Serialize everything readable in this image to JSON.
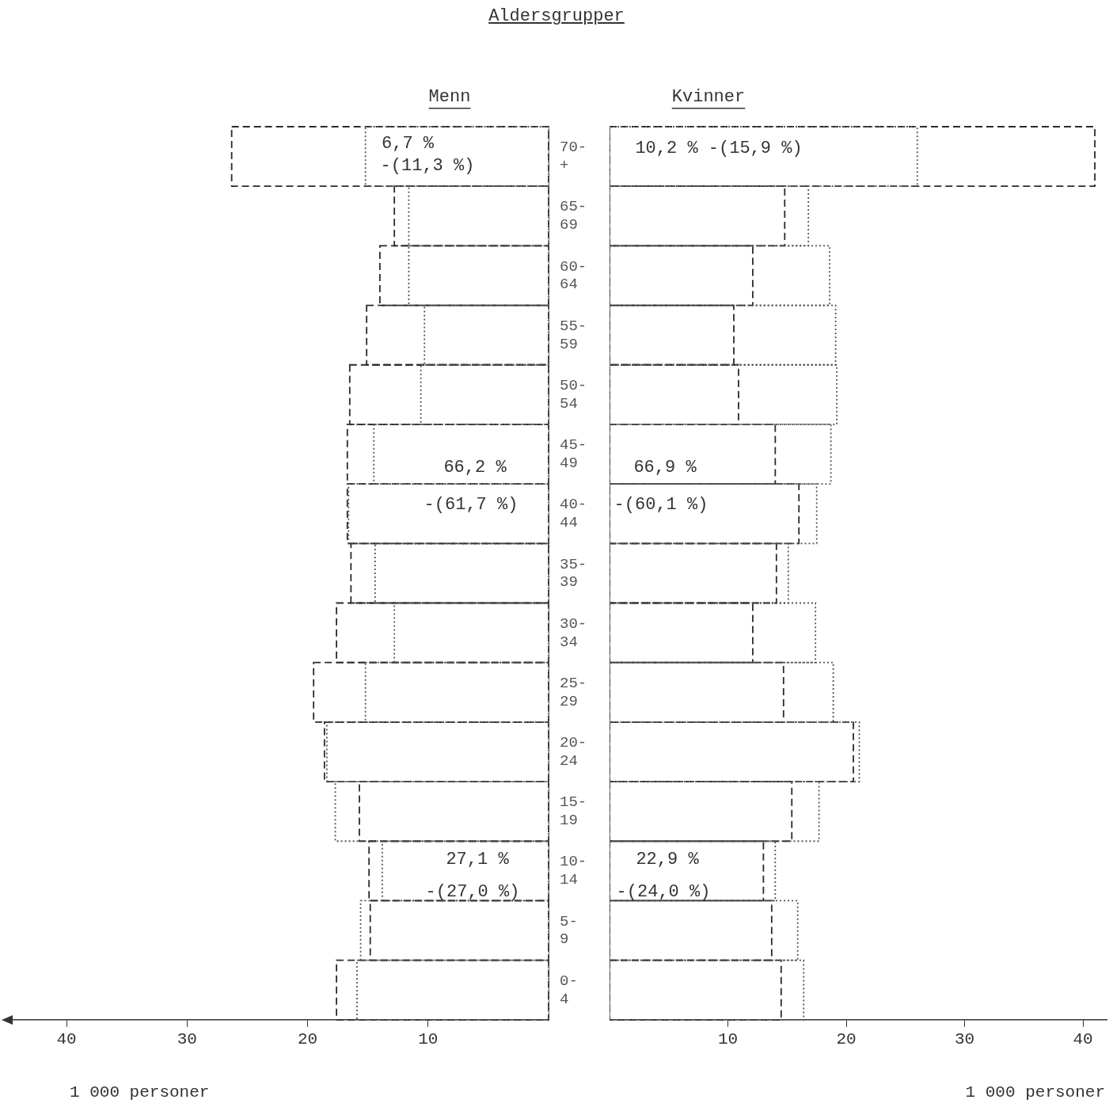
{
  "chart_data": [
    {
      "type": "bar",
      "title": "Aldersgrupper",
      "subtitle": "Menn",
      "xlabel": "1 000 personer",
      "orientation": "horizontal",
      "categories": [
        "70-+",
        "65-69",
        "60-64",
        "55-59",
        "50-54",
        "45-49",
        "40-44",
        "35-39",
        "30-34",
        "25-29",
        "20-24",
        "15-19",
        "10-14",
        "5-9",
        "0-4"
      ],
      "series": [
        {
          "color": "#2b2b2b",
          "line_style": "dashed",
          "values": [
            26.3,
            12.8,
            14.0,
            15.1,
            16.5,
            16.7,
            16.7,
            16.4,
            17.6,
            19.5,
            18.6,
            15.7,
            14.9,
            14.8,
            17.6
          ]
        },
        {
          "color": "#555555",
          "line_style": "dotted",
          "values": [
            15.2,
            11.6,
            11.6,
            10.3,
            10.6,
            14.5,
            16.6,
            14.4,
            12.8,
            15.2,
            18.4,
            17.7,
            13.8,
            15.6,
            15.9
          ]
        }
      ],
      "xlim": [
        45,
        0
      ],
      "xticks": [
        40,
        30,
        20,
        10
      ],
      "annotations": [
        "6,7 %",
        "-(11,3 %)",
        "66,2 %",
        "-(61,7 %)",
        "27,1 %",
        "-(27,0 %)"
      ]
    },
    {
      "type": "bar",
      "subtitle": "Kvinner",
      "xlabel": "1 000 personer",
      "orientation": "horizontal",
      "tick_labels": "x",
      "categories": [
        null,
        null,
        null,
        null,
        null,
        null,
        null,
        null,
        null,
        null,
        null,
        null,
        null,
        null,
        null
      ],
      "series": [
        {
          "color": "#2b2b2b",
          "line_style": "dashed",
          "values": [
            41,
            14.8,
            12.1,
            10.5,
            10.9,
            14.0,
            16.0,
            14.1,
            12.1,
            14.7,
            20.6,
            15.4,
            13.0,
            13.7,
            14.5
          ]
        },
        {
          "color": "#555555",
          "line_style": "dotted",
          "values": [
            26.0,
            16.8,
            18.6,
            19.1,
            19.2,
            18.7,
            17.5,
            15.1,
            17.4,
            18.9,
            21.1,
            17.7,
            14.0,
            15.9,
            16.4
          ]
        }
      ],
      "xlim": [
        0,
        42
      ],
      "xticks": [
        10,
        20,
        30,
        40
      ],
      "annotations": [
        "10,2 % -(15,9 %)",
        "66,9 %",
        "-(60,1 %)",
        "22,9 %",
        "-(24,0 %)"
      ]
    }
  ]
}
